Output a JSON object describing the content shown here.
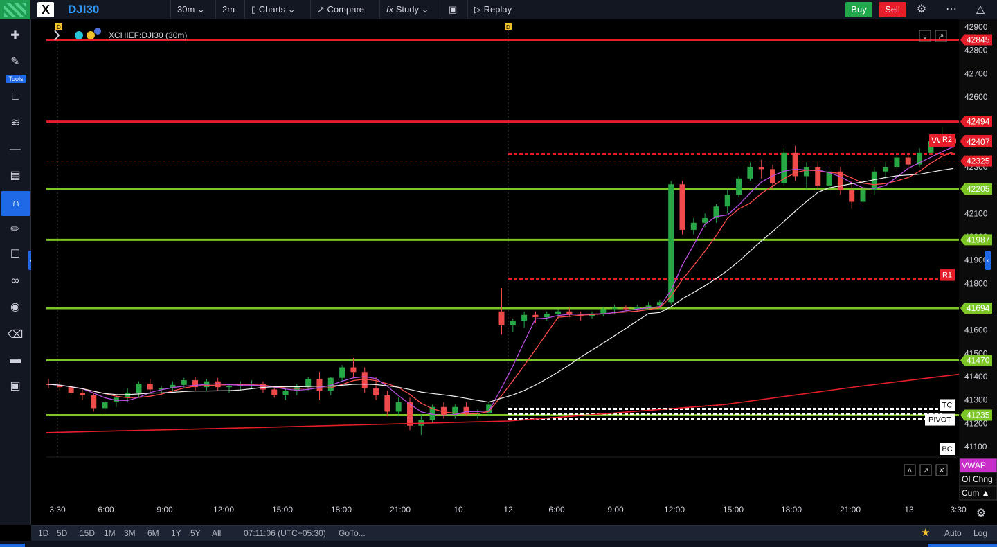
{
  "toolbar": {
    "symbol": "DJI30",
    "interval": "30m",
    "interval2": "2m",
    "charts_label": "Charts",
    "compare_label": "Compare",
    "study_label": "Study",
    "replay_label": "Replay",
    "buy_label": "Buy",
    "sell_label": "Sell"
  },
  "left_toolbar": {
    "tools_label": "Tools"
  },
  "legend": {
    "title": "XCHIEF:DJI30 (30m)",
    "marker": "D"
  },
  "bottom": {
    "ranges": [
      "1D",
      "5D",
      "15D",
      "1M",
      "3M",
      "6M",
      "1Y",
      "5Y",
      "All"
    ],
    "time": "07:11:06 (UTC+05:30)",
    "goto_label": "GoTo...",
    "auto_label": "Auto",
    "log_label": "Log"
  },
  "chart_data": {
    "type": "candlestick",
    "title": "XCHIEF:DJI30 (30m)",
    "x_ticks": [
      "3:30",
      "6:00",
      "9:00",
      "12:00",
      "15:00",
      "18:00",
      "21:00",
      "10",
      "12",
      "6:00",
      "9:00",
      "12:00",
      "15:00",
      "18:00",
      "21:00",
      "13",
      "3:30"
    ],
    "y_ticks": [
      42900,
      42800,
      42700,
      42600,
      42500,
      42400,
      42300,
      42200,
      42100,
      42000,
      41900,
      41800,
      41700,
      41600,
      41500,
      41400,
      41300,
      41200,
      41100
    ],
    "ylim": [
      41000,
      42920
    ],
    "price_labels": [
      {
        "text": "42845",
        "value": 42845,
        "color": "#e51e2a"
      },
      {
        "text": "42494",
        "value": 42494,
        "color": "#e51e2a"
      },
      {
        "text": "42413",
        "value": 42413,
        "color": "#e51e2a",
        "tag": "VWAP"
      },
      {
        "text": "42407",
        "value": 42407,
        "color": "#e51e2a"
      },
      {
        "text": "42325",
        "value": 42325,
        "color": "#e51e2a"
      },
      {
        "text": "42205",
        "value": 42205,
        "color": "#7cc626"
      },
      {
        "text": "41987",
        "value": 41987,
        "color": "#7cc626"
      },
      {
        "text": "41694",
        "value": 41694,
        "color": "#7cc626"
      },
      {
        "text": "41470",
        "value": 41470,
        "color": "#7cc626"
      },
      {
        "text": "41235",
        "value": 41235,
        "color": "#7cc626"
      }
    ],
    "levels": [
      {
        "value": 42845,
        "color": "#e51e2a",
        "style": "solid"
      },
      {
        "value": 42494,
        "color": "#e51e2a",
        "style": "solid"
      },
      {
        "value": 42205,
        "color": "#7cc626",
        "style": "solid"
      },
      {
        "value": 41987,
        "color": "#7cc626",
        "style": "solid"
      },
      {
        "value": 41694,
        "color": "#7cc626",
        "style": "solid"
      },
      {
        "value": 41470,
        "color": "#7cc626",
        "style": "solid"
      },
      {
        "value": 41235,
        "color": "#7cc626",
        "style": "solid"
      }
    ],
    "pivots": [
      {
        "label": "R2",
        "value": 42355,
        "color": "#e51e2a"
      },
      {
        "label": "R1",
        "value": 41820,
        "color": "#e51e2a"
      },
      {
        "label": "TC",
        "value": 41262,
        "color": "#ffffff"
      },
      {
        "label": "PIVOT",
        "value": 41240,
        "color": "#ffffff"
      },
      {
        "label": "BC",
        "value": 41220,
        "color": "#ffffff"
      }
    ],
    "indicator_labels": [
      "VWAP",
      "OI Chng",
      "Cum ▲"
    ],
    "candles": [
      [
        41370,
        41390,
        41350,
        41365
      ],
      [
        41365,
        41380,
        41340,
        41355
      ],
      [
        41355,
        41360,
        41320,
        41330
      ],
      [
        41330,
        41345,
        41300,
        41320
      ],
      [
        41320,
        41330,
        41250,
        41265
      ],
      [
        41265,
        41300,
        41240,
        41290
      ],
      [
        41290,
        41320,
        41270,
        41310
      ],
      [
        41310,
        41350,
        41290,
        41330
      ],
      [
        41330,
        41380,
        41310,
        41370
      ],
      [
        41370,
        41390,
        41330,
        41345
      ],
      [
        41345,
        41360,
        41320,
        41350
      ],
      [
        41350,
        41380,
        41330,
        41365
      ],
      [
        41365,
        41395,
        41350,
        41385
      ],
      [
        41385,
        41400,
        41340,
        41355
      ],
      [
        41355,
        41390,
        41340,
        41380
      ],
      [
        41380,
        41395,
        41340,
        41355
      ],
      [
        41355,
        41370,
        41330,
        41360
      ],
      [
        41360,
        41380,
        41340,
        41365
      ],
      [
        41365,
        41385,
        41350,
        41370
      ],
      [
        41370,
        41380,
        41330,
        41345
      ],
      [
        41345,
        41360,
        41310,
        41320
      ],
      [
        41320,
        41350,
        41300,
        41340
      ],
      [
        41340,
        41370,
        41320,
        41355
      ],
      [
        41355,
        41400,
        41340,
        41390
      ],
      [
        41390,
        41420,
        41300,
        41340
      ],
      [
        41340,
        41400,
        41320,
        41395
      ],
      [
        41395,
        41450,
        41380,
        41440
      ],
      [
        41440,
        41480,
        41400,
        41420
      ],
      [
        41420,
        41440,
        41330,
        41350
      ],
      [
        41350,
        41400,
        41300,
        41320
      ],
      [
        41320,
        41340,
        41230,
        41250
      ],
      [
        41250,
        41310,
        41230,
        41290
      ],
      [
        41290,
        41310,
        41170,
        41190
      ],
      [
        41190,
        41240,
        41150,
        41215
      ],
      [
        41215,
        41280,
        41200,
        41270
      ],
      [
        41270,
        41290,
        41220,
        41235
      ],
      [
        41235,
        41280,
        41220,
        41270
      ],
      [
        41270,
        41290,
        41230,
        41240
      ],
      [
        41240,
        41260,
        41220,
        41245
      ],
      [
        41245,
        41290,
        41230,
        41280
      ],
      [
        41680,
        41780,
        41580,
        41620
      ],
      [
        41620,
        41650,
        41590,
        41640
      ],
      [
        41640,
        41680,
        41610,
        41665
      ],
      [
        41665,
        41680,
        41630,
        41655
      ],
      [
        41655,
        41680,
        41640,
        41670
      ],
      [
        41670,
        41690,
        41650,
        41680
      ],
      [
        41680,
        41695,
        41655,
        41665
      ],
      [
        41665,
        41680,
        41640,
        41660
      ],
      [
        41660,
        41680,
        41650,
        41670
      ],
      [
        41670,
        41700,
        41660,
        41690
      ],
      [
        41690,
        41710,
        41670,
        41695
      ],
      [
        41695,
        41705,
        41680,
        41690
      ],
      [
        41690,
        41710,
        41680,
        41700
      ],
      [
        41700,
        41720,
        41690,
        41705
      ],
      [
        41705,
        41730,
        41690,
        41720
      ],
      [
        41720,
        42240,
        41710,
        42225
      ],
      [
        42225,
        42240,
        42010,
        42030
      ],
      [
        42030,
        42080,
        42010,
        42060
      ],
      [
        42060,
        42100,
        42040,
        42080
      ],
      [
        42080,
        42140,
        42060,
        42130
      ],
      [
        42130,
        42200,
        42100,
        42180
      ],
      [
        42180,
        42260,
        42170,
        42250
      ],
      [
        42250,
        42320,
        42240,
        42300
      ],
      [
        42300,
        42330,
        42250,
        42290
      ],
      [
        42290,
        42310,
        42200,
        42230
      ],
      [
        42230,
        42380,
        42220,
        42360
      ],
      [
        42360,
        42390,
        42240,
        42260
      ],
      [
        42260,
        42320,
        42200,
        42300
      ],
      [
        42300,
        42320,
        42200,
        42220
      ],
      [
        42220,
        42300,
        42200,
        42280
      ],
      [
        42280,
        42300,
        42180,
        42200
      ],
      [
        42200,
        42240,
        42120,
        42150
      ],
      [
        42150,
        42220,
        42120,
        42200
      ],
      [
        42200,
        42300,
        42180,
        42280
      ],
      [
        42280,
        42320,
        42250,
        42300
      ],
      [
        42300,
        42360,
        42280,
        42340
      ],
      [
        42340,
        42360,
        42290,
        42310
      ],
      [
        42310,
        42380,
        42300,
        42360
      ],
      [
        42360,
        42420,
        42350,
        42410
      ],
      [
        42410,
        42470,
        42380,
        42420
      ],
      [
        42420,
        42430,
        42380,
        42400
      ]
    ]
  }
}
